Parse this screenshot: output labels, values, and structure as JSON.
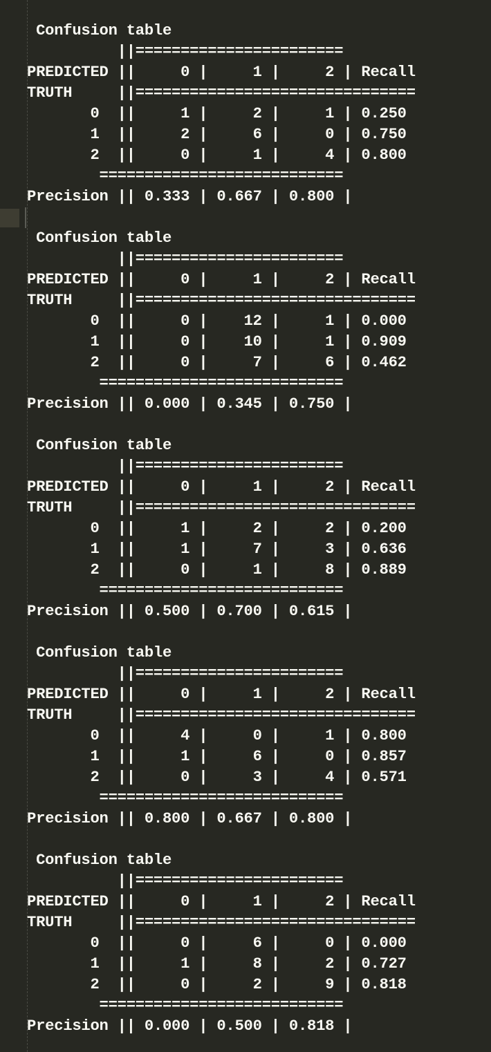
{
  "tables": [
    {
      "title": " Confusion table",
      "lines": [
        "          ||=======================",
        "PREDICTED ||     0 |     1 |     2 | Recall",
        "TRUTH     ||===============================",
        "       0  ||     1 |     2 |     1 | 0.250",
        "       1  ||     2 |     6 |     0 | 0.750",
        "       2  ||     0 |     1 |     4 | 0.800",
        "        ===========================",
        "Precision || 0.333 | 0.667 | 0.800 |"
      ]
    },
    {
      "title": " Confusion table",
      "lines": [
        "          ||=======================",
        "PREDICTED ||     0 |     1 |     2 | Recall",
        "TRUTH     ||===============================",
        "       0  ||     0 |    12 |     1 | 0.000",
        "       1  ||     0 |    10 |     1 | 0.909",
        "       2  ||     0 |     7 |     6 | 0.462",
        "        ===========================",
        "Precision || 0.000 | 0.345 | 0.750 |"
      ]
    },
    {
      "title": " Confusion table",
      "lines": [
        "          ||=======================",
        "PREDICTED ||     0 |     1 |     2 | Recall",
        "TRUTH     ||===============================",
        "       0  ||     1 |     2 |     2 | 0.200",
        "       1  ||     1 |     7 |     3 | 0.636",
        "       2  ||     0 |     1 |     8 | 0.889",
        "        ===========================",
        "Precision || 0.500 | 0.700 | 0.615 |"
      ]
    },
    {
      "title": " Confusion table",
      "lines": [
        "          ||=======================",
        "PREDICTED ||     0 |     1 |     2 | Recall",
        "TRUTH     ||===============================",
        "       0  ||     4 |     0 |     1 | 0.800",
        "       1  ||     1 |     6 |     0 | 0.857",
        "       2  ||     0 |     3 |     4 | 0.571",
        "        ===========================",
        "Precision || 0.800 | 0.667 | 0.800 |"
      ]
    },
    {
      "title": " Confusion table",
      "lines": [
        "          ||=======================",
        "PREDICTED ||     0 |     1 |     2 | Recall",
        "TRUTH     ||===============================",
        "       0  ||     0 |     6 |     0 | 0.000",
        "       1  ||     1 |     8 |     2 | 0.727",
        "       2  ||     0 |     2 |     9 | 0.818",
        "        ===========================",
        "Precision || 0.000 | 0.500 | 0.818 |"
      ]
    }
  ],
  "colors": {
    "background": "#272822",
    "text": "#f8f8f2",
    "indent_guide": "#4a4b44",
    "current_line_marker": "#3e3d32"
  }
}
